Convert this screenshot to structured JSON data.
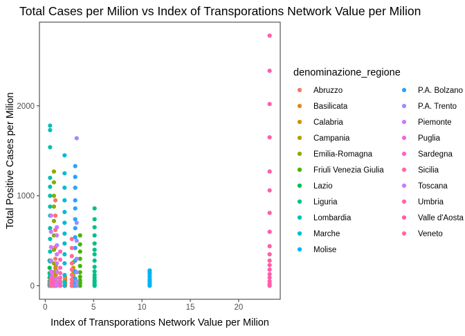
{
  "chart_data": {
    "type": "scatter",
    "title": "Total Cases per Milion vs Index of Transporations Network Value per Milion",
    "xlabel": "Index of Transporations Network Value per Milion",
    "ylabel": "Total Positive Cases per Milion",
    "xlim": [
      -0.6,
      24.3
    ],
    "ylim": [
      -150,
      2930
    ],
    "x_ticks": [
      0,
      5,
      10,
      15,
      20
    ],
    "y_ticks": [
      0,
      1000,
      2000
    ],
    "grid": "off",
    "legend": {
      "title": "denominazione_regione",
      "placement": "right",
      "columns": 2
    },
    "series": [
      {
        "name": "Abruzzo",
        "color": "#F8766D",
        "x": [
          1.05,
          1.05,
          1.05,
          1.05,
          1.05,
          1.05,
          1.05,
          1.05,
          1.05,
          1.05,
          1.05
        ],
        "y": [
          0,
          15,
          40,
          80,
          130,
          200,
          300,
          430,
          620,
          780,
          950
        ]
      },
      {
        "name": "Basilicata",
        "color": "#E7851E",
        "x": [
          2.05,
          2.05,
          2.05,
          2.05,
          2.05,
          2.05,
          2.05,
          2.05
        ],
        "y": [
          0,
          10,
          20,
          30,
          45,
          60,
          80,
          100
        ]
      },
      {
        "name": "Calabria",
        "color": "#D09400",
        "x": [
          1.1,
          1.1,
          1.1,
          1.1,
          1.1,
          1.1,
          1.1,
          1.1,
          1.1
        ],
        "y": [
          0,
          20,
          40,
          60,
          90,
          120,
          150,
          180,
          220
        ]
      },
      {
        "name": "Campania",
        "color": "#B2A100",
        "x": [
          2.9,
          2.9,
          2.9,
          2.9,
          2.9,
          2.9,
          2.9,
          2.9,
          2.9
        ],
        "y": [
          0,
          20,
          40,
          60,
          90,
          120,
          160,
          200,
          260
        ]
      },
      {
        "name": "Emilia-Romagna",
        "color": "#89AC00",
        "x": [
          0.9,
          0.9,
          0.9,
          0.9,
          0.9,
          0.9,
          0.9,
          0.9,
          0.9,
          0.9,
          0.9,
          0.9
        ],
        "y": [
          0,
          30,
          80,
          150,
          250,
          400,
          560,
          720,
          880,
          1000,
          1150,
          1270
        ]
      },
      {
        "name": "Friuli Venezia Giulia",
        "color": "#45B500",
        "x": [
          3.6,
          3.6,
          3.6,
          3.6,
          3.6,
          3.6,
          3.6,
          3.6,
          3.6,
          3.6
        ],
        "y": [
          0,
          30,
          60,
          100,
          150,
          220,
          300,
          380,
          460,
          560
        ]
      },
      {
        "name": "Lazio",
        "color": "#00BC51",
        "x": [
          0.45,
          0.45,
          0.45,
          0.45,
          0.45,
          0.45,
          0.45
        ],
        "y": [
          0,
          20,
          50,
          90,
          140,
          200,
          280
        ]
      },
      {
        "name": "Liguria",
        "color": "#00C087",
        "x": [
          5.1,
          5.1,
          5.1,
          5.1,
          5.1,
          5.1,
          5.1,
          5.1,
          5.1,
          5.1,
          5.1,
          5.1,
          5.1,
          5.1,
          5.1,
          5.1
        ],
        "y": [
          0,
          15,
          40,
          60,
          90,
          120,
          160,
          210,
          280,
          350,
          400,
          470,
          560,
          650,
          740,
          860
        ]
      },
      {
        "name": "Lombardia",
        "color": "#00C0B2",
        "x": [
          0.5,
          0.5,
          0.5,
          0.5,
          0.5,
          0.5,
          0.5,
          0.5,
          0.5,
          0.5,
          0.5,
          0.5,
          0.5,
          0.5,
          0.5
        ],
        "y": [
          0,
          40,
          120,
          270,
          380,
          520,
          640,
          780,
          880,
          1000,
          1100,
          1200,
          1540,
          1730,
          1780
        ]
      },
      {
        "name": "Marche",
        "color": "#00BCD6",
        "x": [
          2.0,
          2.0,
          2.0,
          2.0,
          2.0,
          2.0,
          2.0,
          2.0,
          2.0,
          2.0,
          2.0,
          2.0,
          2.0
        ],
        "y": [
          0,
          40,
          120,
          250,
          350,
          470,
          580,
          700,
          820,
          950,
          1090,
          1250,
          1450
        ]
      },
      {
        "name": "Molise",
        "color": "#00B3F2",
        "x": [
          10.8,
          10.8,
          10.8,
          10.8,
          10.8,
          10.8,
          10.8,
          10.8,
          10.8
        ],
        "y": [
          0,
          10,
          30,
          50,
          70,
          100,
          130,
          150,
          170
        ]
      },
      {
        "name": "P.A. Bolzano",
        "color": "#29A3FF",
        "x": [
          3.1,
          3.1,
          3.1,
          3.1,
          3.1,
          3.1,
          3.1,
          3.1,
          3.1,
          3.1,
          3.1,
          3.1,
          3.1,
          3.1
        ],
        "y": [
          0,
          30,
          80,
          160,
          280,
          420,
          540,
          640,
          740,
          860,
          950,
          1090,
          1210,
          1330
        ]
      },
      {
        "name": "P.A. Trento",
        "color": "#9C8DFF",
        "x": [
          3.25,
          3.25,
          3.25,
          3.25,
          3.25,
          3.25,
          3.25
        ],
        "y": [
          0,
          50,
          150,
          300,
          500,
          700,
          1640
        ]
      },
      {
        "name": "Piemonte",
        "color": "#D277FF",
        "x": [
          0.6,
          0.6,
          0.6,
          0.6,
          0.6,
          0.6,
          0.6,
          0.6
        ],
        "y": [
          0,
          30,
          80,
          160,
          280,
          430,
          600,
          780
        ]
      },
      {
        "name": "Puglia",
        "color": "#F166E8",
        "x": [
          0.7,
          0.7,
          0.7,
          0.7,
          0.7,
          0.7
        ],
        "y": [
          0,
          20,
          40,
          70,
          100,
          140
        ]
      },
      {
        "name": "Sardegna",
        "color": "#FF61C7",
        "x": [
          0.8,
          0.8,
          0.8,
          0.8,
          0.8,
          0.8
        ],
        "y": [
          0,
          10,
          25,
          40,
          60,
          80
        ]
      },
      {
        "name": "Sicilia",
        "color": "#FF68A0",
        "x": [
          0.55,
          0.55,
          0.55,
          0.55,
          0.55
        ],
        "y": [
          0,
          10,
          25,
          45,
          70
        ]
      },
      {
        "name": "Toscana",
        "color": "#C77CFF",
        "x": [
          1.2,
          1.2,
          1.2,
          1.2,
          1.2,
          1.2,
          1.2,
          1.2,
          1.2
        ],
        "y": [
          0,
          30,
          80,
          160,
          250,
          350,
          450,
          560,
          650
        ]
      },
      {
        "name": "Umbria",
        "color": "#FF64B0",
        "x": [
          1.55,
          1.55,
          1.55,
          1.55,
          1.55,
          1.55,
          1.55,
          1.55
        ],
        "y": [
          0,
          20,
          50,
          90,
          140,
          200,
          290,
          380
        ]
      },
      {
        "name": "Valle d'Aosta",
        "color": "#FF5EA8",
        "x": [
          23.2,
          23.2,
          23.2,
          23.2,
          23.2,
          23.2,
          23.2,
          23.2,
          23.2,
          23.2,
          23.2,
          23.2,
          23.2,
          23.2,
          23.2,
          23.2,
          23.2,
          23.2
        ],
        "y": [
          0,
          20,
          50,
          90,
          130,
          180,
          230,
          280,
          350,
          440,
          600,
          810,
          1060,
          1270,
          1650,
          2020,
          2390,
          2780
        ]
      },
      {
        "name": "Veneto",
        "color": "#FF6C91",
        "x": [
          2.75,
          2.75,
          2.75,
          2.75,
          2.75,
          2.75,
          2.75,
          2.75,
          2.75
        ],
        "y": [
          0,
          30,
          70,
          120,
          180,
          250,
          330,
          420,
          520
        ]
      }
    ]
  }
}
